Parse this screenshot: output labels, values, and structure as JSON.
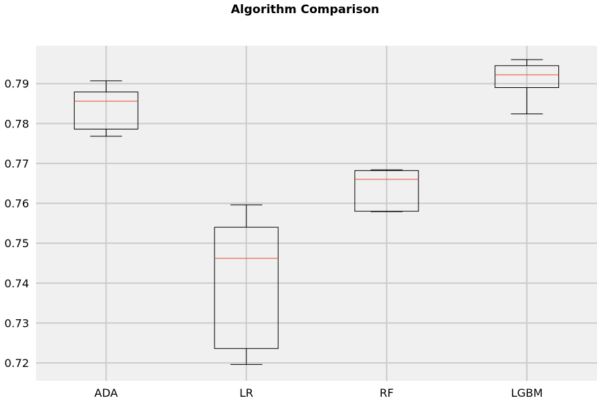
{
  "chart_data": {
    "type": "box",
    "title": "Algorithm Comparison",
    "xlabel": "",
    "ylabel": "",
    "categories": [
      "ADA",
      "LR",
      "RF",
      "LGBM"
    ],
    "boxes": [
      {
        "label": "ADA",
        "whisker_low": 0.7768,
        "q1": 0.7786,
        "median": 0.7856,
        "q3": 0.7879,
        "whisker_high": 0.7907
      },
      {
        "label": "LR",
        "whisker_low": 0.7196,
        "q1": 0.7236,
        "median": 0.7462,
        "q3": 0.754,
        "whisker_high": 0.7596
      },
      {
        "label": "RF",
        "whisker_low": 0.7579,
        "q1": 0.758,
        "median": 0.766,
        "q3": 0.7682,
        "whisker_high": 0.7684
      },
      {
        "label": "LGBM",
        "whisker_low": 0.7824,
        "q1": 0.789,
        "median": 0.7922,
        "q3": 0.7945,
        "whisker_high": 0.796
      }
    ],
    "ylim": [
      0.7155,
      0.7995
    ],
    "yticks": [
      "0.72",
      "0.73",
      "0.74",
      "0.75",
      "0.76",
      "0.77",
      "0.78",
      "0.79"
    ],
    "grid": true,
    "colors": {
      "background": "#f0f0f0",
      "grid": "#cbcbcb",
      "box": "#000000",
      "median": "#e24a33"
    }
  }
}
